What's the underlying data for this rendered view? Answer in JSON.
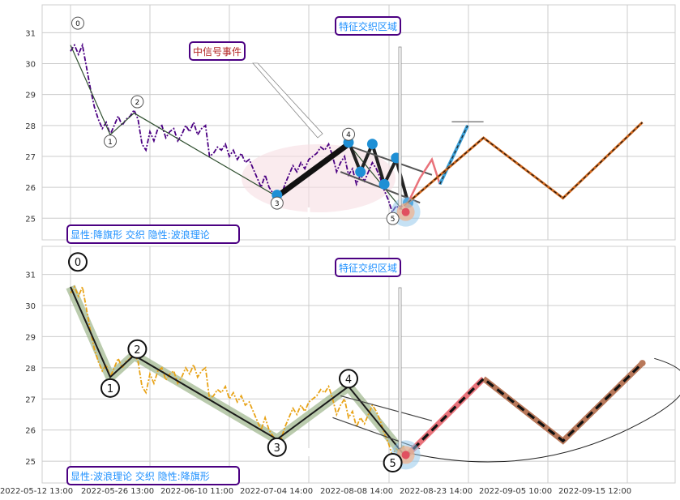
{
  "chart_data": [
    {
      "type": "line",
      "panel": "top",
      "ylim": [
        24.3,
        31.9
      ],
      "y_ticks": [
        25,
        26,
        27,
        28,
        29,
        30,
        31
      ],
      "price_series": {
        "style": "dash-dot",
        "color": "#4b0082",
        "values": [
          30.4,
          30.6,
          30.3,
          30.6,
          29.9,
          29.2,
          28.6,
          28.2,
          27.9,
          28.1,
          27.7,
          28.0,
          28.3,
          28.0,
          28.2,
          28.3,
          28.5,
          28.2,
          27.4,
          27.2,
          27.8,
          27.5,
          27.9,
          28.0,
          27.6,
          27.8,
          27.9,
          27.5,
          27.7,
          28.0,
          27.8,
          28.1,
          27.7,
          27.9,
          28.0,
          27.0,
          27.1,
          27.3,
          27.2,
          27.4,
          27.0,
          27.2,
          26.9,
          27.1,
          26.8,
          26.9,
          26.6,
          26.3,
          26.0,
          26.4,
          26.0,
          25.8,
          25.6,
          25.7,
          26.1,
          26.4,
          26.7,
          26.5,
          26.8,
          26.6,
          26.9,
          27.0,
          27.1,
          27.3,
          27.2,
          27.4,
          27.0,
          26.5,
          26.8,
          27.0,
          26.4,
          26.6,
          26.1,
          26.4,
          26.2,
          26.5,
          26.8,
          26.6,
          26.3,
          25.9,
          25.6,
          25.2,
          25.4,
          25.3,
          25.5
        ]
      },
      "wave_points": [
        {
          "label": "0",
          "x": 0,
          "y": 30.6
        },
        {
          "label": "1",
          "x": 10,
          "y": 27.7
        },
        {
          "label": "2",
          "x": 16,
          "y": 28.4
        },
        {
          "label": "3",
          "x": 52,
          "y": 25.7
        },
        {
          "label": "4",
          "x": 70,
          "y": 27.4
        },
        {
          "label": "5",
          "x": 84,
          "y": 25.2
        }
      ],
      "projection": {
        "values": [
          [
            84,
            25.4
          ],
          [
            104,
            27.6
          ],
          [
            124,
            25.65
          ],
          [
            144,
            28.1
          ]
        ],
        "color": "#d2691e"
      },
      "flag_pattern": [
        [
          70,
          27.5
        ],
        [
          73,
          26.5
        ],
        [
          76,
          27.4
        ],
        [
          79,
          26.1
        ],
        [
          82,
          26.9
        ],
        [
          85,
          25.5
        ]
      ],
      "annotations": [
        {
          "text": "中信号事件",
          "color": "#b22222"
        },
        {
          "text": "特征交织区域",
          "color": "#1e90ff"
        },
        {
          "text": "显性:降旗形 交织 隐性:波浪理论",
          "color": "#1e90ff"
        }
      ]
    },
    {
      "type": "line",
      "panel": "bottom",
      "ylim": [
        24.3,
        31.9
      ],
      "y_ticks": [
        25,
        26,
        27,
        28,
        29,
        30,
        31
      ],
      "price_series": {
        "style": "dash-dot",
        "color": "#e8a317",
        "values": [
          30.4,
          30.6,
          30.3,
          30.6,
          29.9,
          29.2,
          28.6,
          28.2,
          27.9,
          28.1,
          27.7,
          28.0,
          28.3,
          28.0,
          28.2,
          28.3,
          28.5,
          28.2,
          27.4,
          27.2,
          27.8,
          27.5,
          27.9,
          28.0,
          27.6,
          27.8,
          27.9,
          27.5,
          27.7,
          28.0,
          27.8,
          28.1,
          27.7,
          27.9,
          28.0,
          27.0,
          27.1,
          27.3,
          27.2,
          27.4,
          27.0,
          27.2,
          26.9,
          27.1,
          26.8,
          26.9,
          26.6,
          26.3,
          26.0,
          26.4,
          26.0,
          25.8,
          25.6,
          25.7,
          26.1,
          26.4,
          26.7,
          26.5,
          26.8,
          26.6,
          26.9,
          27.0,
          27.1,
          27.3,
          27.2,
          27.4,
          27.0,
          26.5,
          26.8,
          27.0,
          26.4,
          26.6,
          26.1,
          26.4,
          26.2,
          26.5,
          26.8,
          26.6,
          26.3,
          25.9,
          25.6,
          25.2,
          25.4,
          25.3,
          25.5
        ]
      },
      "wave_points": [
        {
          "label": "0",
          "x": 0,
          "y": 30.6
        },
        {
          "label": "1",
          "x": 10,
          "y": 27.7
        },
        {
          "label": "2",
          "x": 16,
          "y": 28.4
        },
        {
          "label": "3",
          "x": 52,
          "y": 25.7
        },
        {
          "label": "4",
          "x": 70,
          "y": 27.4
        },
        {
          "label": "5",
          "x": 84,
          "y": 25.2
        }
      ],
      "projection": {
        "values": [
          [
            84,
            25.1
          ],
          [
            104,
            27.65
          ],
          [
            124,
            25.65
          ],
          [
            144,
            28.15
          ]
        ],
        "color": "#e9727a"
      },
      "annotations": [
        {
          "text": "特征交织区域",
          "color": "#1e90ff"
        },
        {
          "text": "显性:波浪理论 交织 隐性:降旗形",
          "color": "#1e90ff"
        }
      ]
    }
  ],
  "x_axis": {
    "tick_labels": [
      "2022-05-12 13:00",
      "2022-05-26 13:00",
      "2022-06-10 11:00",
      "2022-07-04 14:00",
      "2022-08-08 14:00",
      "2022-08-23 14:00",
      "2022-09-05 10:00",
      "2022-09-15 12:00"
    ]
  },
  "colors": {
    "grid": "#cccccc",
    "box_border": "#4b0082",
    "frame": "#cfcfcf"
  }
}
